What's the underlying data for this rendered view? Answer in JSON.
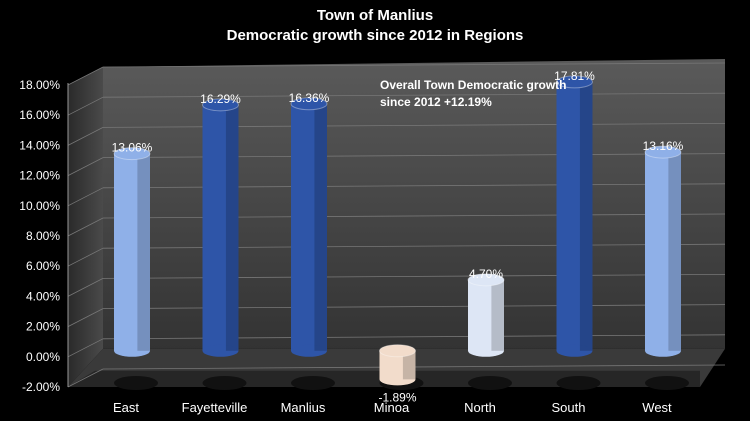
{
  "chart_data": {
    "type": "bar",
    "title": "Town of Manlius",
    "subtitle": "Democratic growth since 2012 in Regions",
    "categories": [
      "East",
      "Fayetteville",
      "Manlius",
      "Minoa",
      "North",
      "South",
      "West"
    ],
    "values": [
      13.06,
      16.29,
      16.36,
      -1.89,
      4.7,
      17.81,
      13.16
    ],
    "value_labels": [
      "13.06%",
      "16.29%",
      "16.36%",
      "-1.89%",
      "4.70%",
      "17.81%",
      "13.16%"
    ],
    "bar_colors": [
      "#8fb0e8",
      "#2e55a8",
      "#2e55a8",
      "#f2dccb",
      "#dde6f5",
      "#2e55a8",
      "#8fb0e8"
    ],
    "ylim": [
      -2,
      18
    ],
    "y_ticks": [
      "-2.00%",
      "0.00%",
      "2.00%",
      "4.00%",
      "6.00%",
      "8.00%",
      "10.00%",
      "12.00%",
      "14.00%",
      "16.00%",
      "18.00%"
    ],
    "annotation": "Overall Town Democratic growth since 2012 +12.19%",
    "grid": true,
    "background": "#000000"
  }
}
